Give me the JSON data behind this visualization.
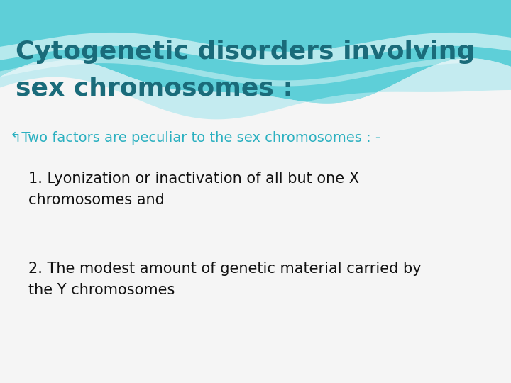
{
  "title_line1": "Cytogenetic disorders involving",
  "title_line2": "sex chromosomes :",
  "title_color": "#1a6b7a",
  "bullet_text": "↰Two factors are peculiar to the sex chromosomes : -",
  "bullet_color": "#2ab0c0",
  "point1": "1. Lyonization or inactivation of all but one X\nchromosomes and",
  "point2": "2. The modest amount of genetic material carried by\nthe Y chromosomes",
  "point_color": "#111111",
  "slide_bg": "#f5f5f5",
  "wave_teal": "#5ecfd8",
  "wave_light": "#b0e8ee",
  "wave_white": "#ffffff",
  "title_fontsize": 26,
  "body_fontsize": 15,
  "bullet_fontsize": 14
}
